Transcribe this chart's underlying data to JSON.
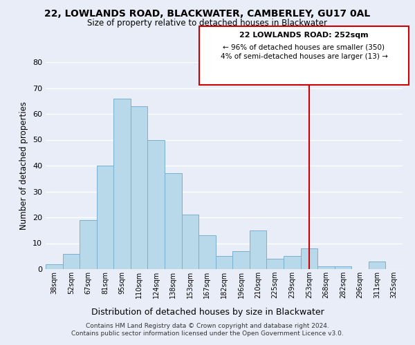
{
  "title": "22, LOWLANDS ROAD, BLACKWATER, CAMBERLEY, GU17 0AL",
  "subtitle": "Size of property relative to detached houses in Blackwater",
  "xlabel": "Distribution of detached houses by size in Blackwater",
  "ylabel": "Number of detached properties",
  "bin_labels": [
    "38sqm",
    "52sqm",
    "67sqm",
    "81sqm",
    "95sqm",
    "110sqm",
    "124sqm",
    "138sqm",
    "153sqm",
    "167sqm",
    "182sqm",
    "196sqm",
    "210sqm",
    "225sqm",
    "239sqm",
    "253sqm",
    "268sqm",
    "282sqm",
    "296sqm",
    "311sqm",
    "325sqm"
  ],
  "bar_heights": [
    2,
    6,
    19,
    40,
    66,
    63,
    50,
    37,
    21,
    13,
    5,
    7,
    15,
    4,
    5,
    8,
    1,
    1,
    0,
    3,
    0
  ],
  "bar_color": "#b8d9ea",
  "bar_edge_color": "#7aafcf",
  "vline_x_index": 15,
  "vline_color": "#cc0000",
  "ylim": [
    0,
    80
  ],
  "yticks": [
    0,
    10,
    20,
    30,
    40,
    50,
    60,
    70,
    80
  ],
  "annotation_title": "22 LOWLANDS ROAD: 252sqm",
  "annotation_line1": "← 96% of detached houses are smaller (350)",
  "annotation_line2": "4% of semi-detached houses are larger (13) →",
  "annotation_box_color": "#ffffff",
  "annotation_box_edge_color": "#cc0000",
  "footer_line1": "Contains HM Land Registry data © Crown copyright and database right 2024.",
  "footer_line2": "Contains public sector information licensed under the Open Government Licence v3.0.",
  "background_color": "#e8edf8",
  "grid_color": "#ffffff"
}
